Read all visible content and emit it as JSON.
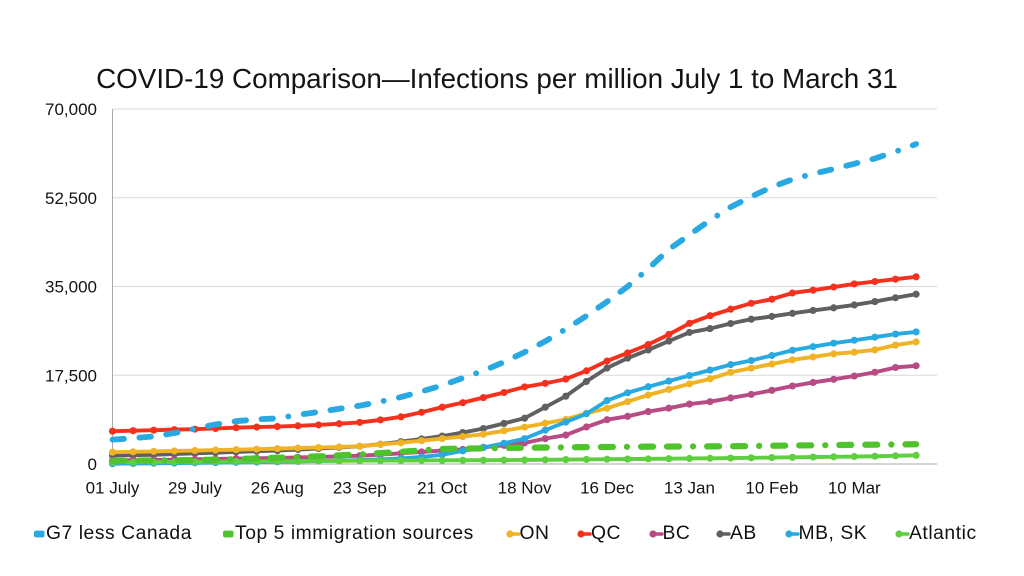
{
  "chart_data": {
    "type": "line",
    "title": "COVID-19 Comparison—Infections per million July 1 to March 31",
    "x_points": 40,
    "x_interval": "weekly",
    "x_tick_labels": [
      "01 July",
      "29 July",
      "26 Aug",
      "23 Sep",
      "21 Oct",
      "18 Nov",
      "16 Dec",
      "13 Jan",
      "10 Feb",
      "10 Mar"
    ],
    "x_tick_weeks": [
      0,
      4,
      8,
      12,
      16,
      20,
      24,
      28,
      32,
      36
    ],
    "y_ticks": [
      0,
      17500,
      35000,
      52500,
      70000
    ],
    "y_tick_labels": [
      "0",
      "17,500",
      "35,000",
      "52,500",
      "70,000"
    ],
    "ylim": [
      0,
      70000
    ],
    "grid": "horizontal",
    "legend_position": "bottom",
    "series": [
      {
        "name": "G7 less Canada",
        "color": "#29a9e1",
        "style": "dashed",
        "values": [
          4800,
          5100,
          5450,
          6100,
          6950,
          7800,
          8440,
          8800,
          9000,
          9700,
          10250,
          10900,
          11500,
          12300,
          13200,
          14300,
          15500,
          16950,
          18400,
          20100,
          22050,
          24200,
          26600,
          29200,
          32000,
          35000,
          38500,
          42300,
          45200,
          48070,
          50660,
          52730,
          54630,
          56130,
          57230,
          58170,
          59200,
          60240,
          61600,
          63090
        ]
      },
      {
        "name": "Top 5 immigration sources",
        "color": "#4fc32c",
        "style": "dashed",
        "values": [
          610,
          650,
          690,
          730,
          770,
          860,
          970,
          1100,
          1240,
          1370,
          1500,
          1700,
          1900,
          2150,
          2400,
          2700,
          2970,
          3030,
          3090,
          3150,
          3210,
          3250,
          3290,
          3330,
          3360,
          3390,
          3420,
          3440,
          3460,
          3480,
          3500,
          3550,
          3600,
          3650,
          3690,
          3730,
          3770,
          3810,
          3850,
          3890
        ]
      },
      {
        "name": "ON",
        "color": "#f0b323",
        "style": "solid",
        "values": [
          2320,
          2400,
          2480,
          2570,
          2650,
          2740,
          2830,
          2930,
          3030,
          3140,
          3250,
          3370,
          3500,
          3850,
          4200,
          4600,
          5020,
          5410,
          5880,
          6550,
          7270,
          8040,
          8790,
          9990,
          11000,
          12300,
          13600,
          14700,
          15800,
          16790,
          18090,
          18900,
          19700,
          20540,
          21110,
          21720,
          22040,
          22510,
          23450,
          24060
        ]
      },
      {
        "name": "QC",
        "color": "#f5301d",
        "style": "solid",
        "values": [
          6470,
          6570,
          6670,
          6780,
          6870,
          7010,
          7160,
          7290,
          7390,
          7520,
          7710,
          7940,
          8200,
          8700,
          9300,
          10200,
          11200,
          12100,
          13100,
          14100,
          15200,
          15900,
          16740,
          18370,
          20310,
          21900,
          23560,
          25540,
          27730,
          29240,
          30520,
          31700,
          32500,
          33720,
          34280,
          34900,
          35510,
          35980,
          36450,
          36910
        ]
      },
      {
        "name": "BC",
        "color": "#b84a84",
        "style": "solid",
        "values": [
          700,
          750,
          800,
          860,
          920,
          990,
          1060,
          1130,
          1200,
          1290,
          1390,
          1510,
          1640,
          1850,
          2100,
          2370,
          2650,
          2870,
          3290,
          3680,
          4170,
          5000,
          5700,
          7300,
          8730,
          9400,
          10340,
          11010,
          11820,
          12290,
          13020,
          13730,
          14530,
          15380,
          16080,
          16690,
          17350,
          18090,
          19030,
          19370
        ]
      },
      {
        "name": "AB",
        "color": "#5f6062",
        "style": "solid",
        "values": [
          1670,
          1740,
          1820,
          1950,
          2100,
          2230,
          2380,
          2520,
          2650,
          2850,
          3050,
          3270,
          3500,
          3900,
          4400,
          4950,
          5500,
          6200,
          7000,
          8000,
          9030,
          11200,
          13370,
          16280,
          18920,
          20870,
          22490,
          24240,
          25950,
          26700,
          27700,
          28550,
          29100,
          29710,
          30280,
          30790,
          31360,
          32030,
          32780,
          33480
        ]
      },
      {
        "name": "MB, SK",
        "color": "#29a9e1",
        "style": "solid",
        "values": [
          60,
          100,
          140,
          180,
          220,
          270,
          320,
          370,
          430,
          500,
          580,
          670,
          770,
          900,
          1100,
          1400,
          1800,
          2600,
          3250,
          4090,
          5000,
          6680,
          8260,
          9900,
          12500,
          14040,
          15240,
          16350,
          17450,
          18520,
          19600,
          20410,
          21390,
          22430,
          23140,
          23830,
          24400,
          25010,
          25620,
          26050
        ]
      },
      {
        "name": "Atlantic",
        "color": "#5ecf3e",
        "style": "solid",
        "values": [
          330,
          355,
          380,
          405,
          430,
          460,
          490,
          520,
          550,
          575,
          600,
          625,
          650,
          670,
          690,
          705,
          720,
          740,
          760,
          780,
          800,
          835,
          870,
          905,
          940,
          975,
          1010,
          1050,
          1090,
          1130,
          1170,
          1220,
          1270,
          1320,
          1370,
          1420,
          1470,
          1530,
          1620,
          1710
        ]
      }
    ]
  }
}
